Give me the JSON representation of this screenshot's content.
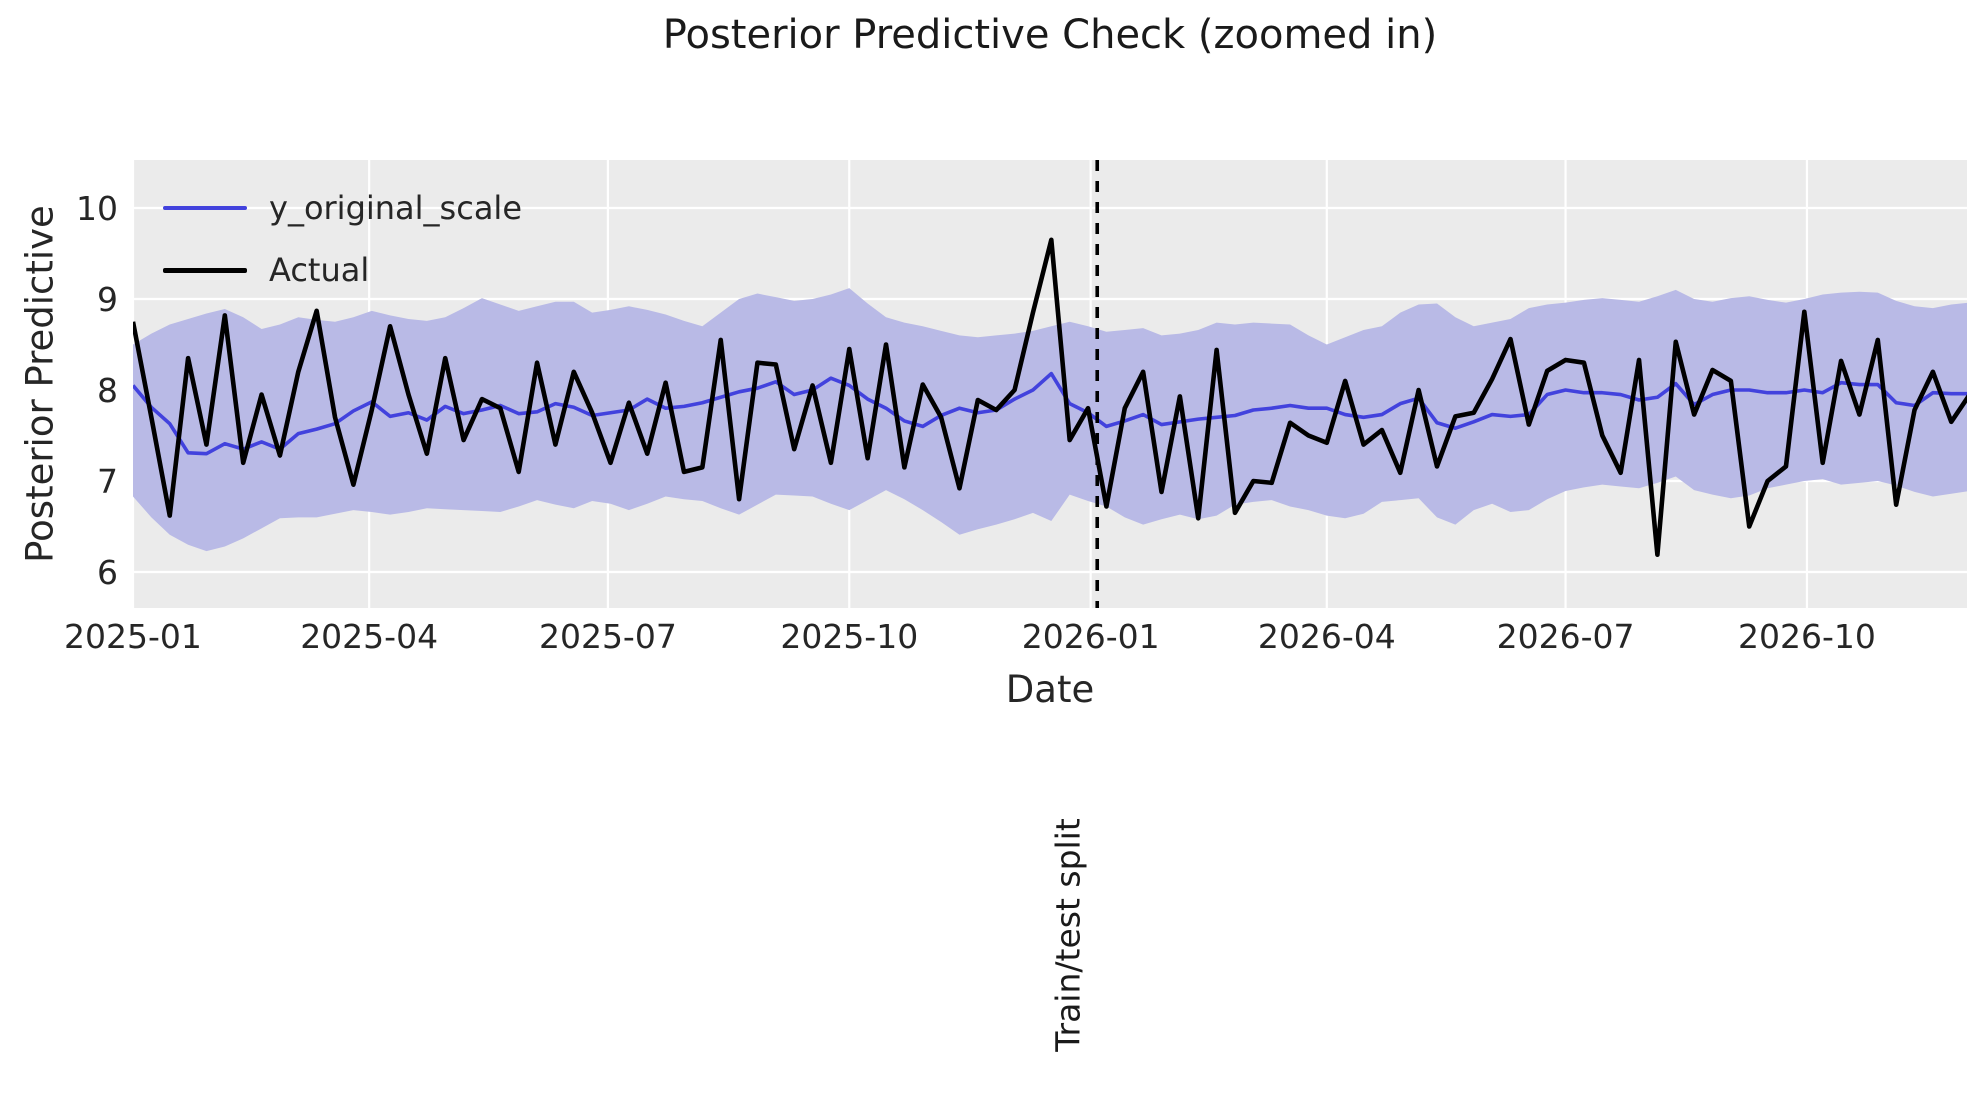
{
  "title": "Posterior Predictive Check (zoomed in)",
  "chart_data": {
    "type": "line",
    "title": "Posterior Predictive Check (zoomed in)",
    "xlabel": "Date",
    "ylabel": "Posterior Predictive",
    "annotation": "Train/test split",
    "grid": true,
    "legend_position": "upper left",
    "colors": {
      "background": "#ebebeb",
      "grid": "#ffffff",
      "band": "#b9bae6",
      "posterior_mean": "#4242dd",
      "actual": "#000000",
      "split_line": "#000000",
      "text": "#262626"
    },
    "x_start_date": "2025-01-01",
    "x_step_days": 7,
    "xlim_days": [
      0,
      699
    ],
    "ylim": [
      5.6,
      10.53
    ],
    "y_ticks": [
      6,
      7,
      8,
      9,
      10
    ],
    "x_ticks": [
      {
        "label": "2025-01",
        "day": 0
      },
      {
        "label": "2025-04",
        "day": 90
      },
      {
        "label": "2025-07",
        "day": 181
      },
      {
        "label": "2025-10",
        "day": 273
      },
      {
        "label": "2026-01",
        "day": 365
      },
      {
        "label": "2026-04",
        "day": 455
      },
      {
        "label": "2026-07",
        "day": 546
      },
      {
        "label": "2026-10",
        "day": 638
      }
    ],
    "split_day": 367.5,
    "legend": [
      {
        "label": "y_original_scale",
        "color": "#4242dd"
      },
      {
        "label": "Actual",
        "color": "#000000"
      }
    ],
    "series": [
      {
        "name": "y_original_scale",
        "values": [
          8.05,
          7.81,
          7.63,
          7.31,
          7.3,
          7.41,
          7.35,
          7.43,
          7.35,
          7.52,
          7.57,
          7.63,
          7.77,
          7.87,
          7.71,
          7.75,
          7.67,
          7.82,
          7.74,
          7.78,
          7.83,
          7.74,
          7.76,
          7.85,
          7.81,
          7.72,
          7.75,
          7.78,
          7.9,
          7.8,
          7.82,
          7.86,
          7.92,
          7.98,
          8.02,
          8.09,
          7.95,
          8.0,
          8.13,
          8.05,
          7.9,
          7.8,
          7.66,
          7.6,
          7.72,
          7.8,
          7.75,
          7.78,
          7.9,
          8.0,
          8.18,
          7.85,
          7.75,
          7.6,
          7.66,
          7.73,
          7.62,
          7.65,
          7.68,
          7.7,
          7.72,
          7.78,
          7.8,
          7.83,
          7.8,
          7.8,
          7.73,
          7.7,
          7.73,
          7.85,
          7.91,
          7.64,
          7.58,
          7.65,
          7.73,
          7.71,
          7.73,
          7.95,
          8.0,
          7.97,
          7.97,
          7.95,
          7.89,
          7.92,
          8.07,
          7.84,
          7.95,
          8.0,
          8.0,
          7.97,
          7.97,
          8.0,
          7.97,
          8.08,
          8.06,
          8.06,
          7.86,
          7.83,
          7.97,
          7.96,
          7.96
        ]
      },
      {
        "name": "Actual",
        "values": [
          8.75,
          7.7,
          6.62,
          8.35,
          7.4,
          8.82,
          7.2,
          7.95,
          7.28,
          8.2,
          8.87,
          7.7,
          6.96,
          7.78,
          8.7,
          7.95,
          7.3,
          8.35,
          7.45,
          7.9,
          7.8,
          7.1,
          8.3,
          7.4,
          8.2,
          7.75,
          7.2,
          7.86,
          7.3,
          8.08,
          7.1,
          7.15,
          8.55,
          6.8,
          8.3,
          8.28,
          7.35,
          8.05,
          7.2,
          8.45,
          7.25,
          8.5,
          7.15,
          8.06,
          7.7,
          6.92,
          7.89,
          7.78,
          8.0,
          8.85,
          9.65,
          7.45,
          7.8,
          6.72,
          7.8,
          8.2,
          6.88,
          7.93,
          6.59,
          8.44,
          6.65,
          7.0,
          6.98,
          7.64,
          7.5,
          7.42,
          8.1,
          7.4,
          7.56,
          7.09,
          8.0,
          7.16,
          7.71,
          7.75,
          8.12,
          8.56,
          7.62,
          8.21,
          8.33,
          8.3,
          7.5,
          7.09,
          8.33,
          6.19,
          8.53,
          7.73,
          8.22,
          8.1,
          6.5,
          7.0,
          7.16,
          8.86,
          7.2,
          8.32,
          7.73,
          8.55,
          6.74,
          7.78,
          8.2,
          7.65,
          7.95
        ]
      },
      {
        "name": "band_upper",
        "values": [
          8.5,
          8.62,
          8.72,
          8.78,
          8.84,
          8.89,
          8.8,
          8.67,
          8.72,
          8.8,
          8.77,
          8.75,
          8.8,
          8.87,
          8.82,
          8.78,
          8.76,
          8.8,
          8.9,
          9.01,
          8.94,
          8.87,
          8.92,
          8.97,
          8.97,
          8.85,
          8.88,
          8.92,
          8.88,
          8.83,
          8.76,
          8.7,
          8.85,
          9.0,
          9.06,
          9.02,
          8.98,
          9.0,
          9.05,
          9.12,
          8.95,
          8.8,
          8.74,
          8.7,
          8.65,
          8.6,
          8.58,
          8.6,
          8.62,
          8.65,
          8.7,
          8.75,
          8.7,
          8.64,
          8.66,
          8.68,
          8.6,
          8.62,
          8.66,
          8.74,
          8.72,
          8.74,
          8.73,
          8.72,
          8.6,
          8.5,
          8.58,
          8.66,
          8.7,
          8.85,
          8.94,
          8.95,
          8.8,
          8.7,
          8.74,
          8.78,
          8.9,
          8.94,
          8.96,
          8.99,
          9.01,
          8.99,
          8.97,
          9.03,
          9.1,
          9.0,
          8.97,
          9.01,
          9.03,
          8.99,
          8.96,
          9.0,
          9.05,
          9.07,
          9.08,
          9.07,
          8.98,
          8.92,
          8.9,
          8.94,
          8.96
        ]
      },
      {
        "name": "band_lower",
        "values": [
          6.83,
          6.6,
          6.41,
          6.3,
          6.23,
          6.28,
          6.37,
          6.48,
          6.59,
          6.6,
          6.6,
          6.64,
          6.68,
          6.66,
          6.63,
          6.66,
          6.7,
          6.69,
          6.68,
          6.67,
          6.66,
          6.72,
          6.79,
          6.74,
          6.7,
          6.78,
          6.75,
          6.68,
          6.75,
          6.83,
          6.8,
          6.78,
          6.7,
          6.63,
          6.74,
          6.85,
          6.84,
          6.83,
          6.75,
          6.68,
          6.79,
          6.9,
          6.8,
          6.68,
          6.55,
          6.41,
          6.47,
          6.52,
          6.58,
          6.65,
          6.56,
          6.85,
          6.78,
          6.72,
          6.6,
          6.52,
          6.58,
          6.63,
          6.58,
          6.62,
          6.74,
          6.77,
          6.79,
          6.72,
          6.68,
          6.62,
          6.59,
          6.64,
          6.77,
          6.79,
          6.81,
          6.6,
          6.52,
          6.68,
          6.75,
          6.66,
          6.68,
          6.8,
          6.89,
          6.93,
          6.96,
          6.94,
          6.92,
          6.98,
          7.05,
          6.9,
          6.85,
          6.81,
          6.84,
          6.92,
          6.96,
          7.0,
          7.02,
          6.96,
          6.98,
          7.0,
          6.95,
          6.88,
          6.83,
          6.86,
          6.89
        ]
      }
    ]
  }
}
